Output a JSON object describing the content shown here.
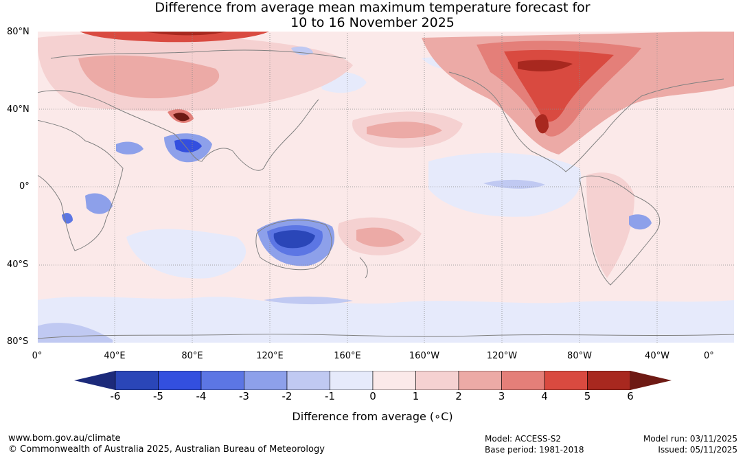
{
  "title": {
    "line1": "Difference from average mean maximum temperature forecast for",
    "line2": "10 to 16 November 2025"
  },
  "map": {
    "lat_labels": [
      "80°N",
      "40°N",
      "0°",
      "40°S",
      "80°S"
    ],
    "lon_labels": [
      "0°",
      "40°E",
      "80°E",
      "120°E",
      "160°E",
      "160°W",
      "120°W",
      "80°W",
      "40°W",
      "0°"
    ],
    "background_color": "#fbe9e9",
    "regions": [
      {
        "name": "arctic-siberia-warm",
        "anomaly": 5
      },
      {
        "name": "north-america-warm",
        "anomaly": 5
      },
      {
        "name": "tibet-warm",
        "anomaly": 6
      },
      {
        "name": "india-cool",
        "anomaly": -5
      },
      {
        "name": "australia-cool",
        "anomaly": -5
      },
      {
        "name": "madagascar-cool",
        "anomaly": -4
      },
      {
        "name": "equatorial-pacific-cool",
        "anomaly": -1
      },
      {
        "name": "southern-ocean-cool",
        "anomaly": -1
      },
      {
        "name": "brazil-cool",
        "anomaly": -3
      }
    ]
  },
  "colorbar": {
    "title": "Difference from average (∘C)",
    "ticks": [
      "-6",
      "-5",
      "-4",
      "-3",
      "-2",
      "-1",
      "0",
      "1",
      "2",
      "3",
      "4",
      "5",
      "6"
    ],
    "colors": [
      "#1c2a7a",
      "#2a46b8",
      "#334fdf",
      "#5c76e4",
      "#8da0ea",
      "#c0c9f2",
      "#e6eafb",
      "#fbe9e9",
      "#f5d1d1",
      "#ecaaa6",
      "#e47f79",
      "#d94a40",
      "#a8281f",
      "#6e1a14"
    ]
  },
  "footer": {
    "website": "www.bom.gov.au/climate",
    "copyright": "© Commonwealth of Australia 2025, Australian Bureau of Meteorology",
    "model": "Model: ACCESS-S2",
    "base_period": "Base period: 1981-2018",
    "model_run": "Model run: 03/11/2025",
    "issued": "Issued: 05/11/2025"
  }
}
